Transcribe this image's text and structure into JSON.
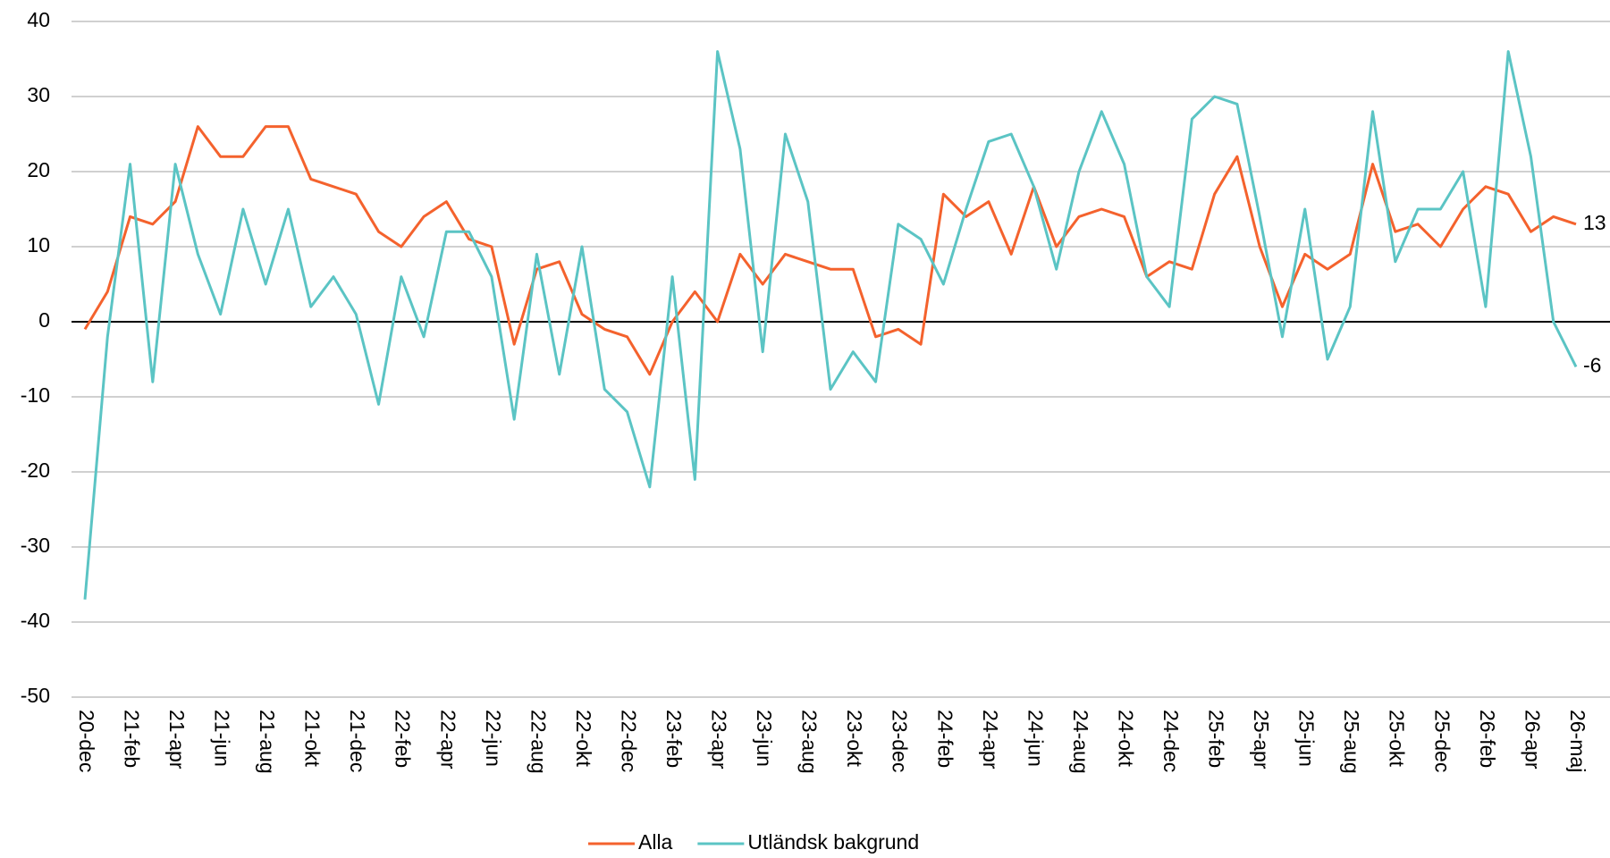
{
  "chart_data": {
    "type": "line",
    "categories": [
      "20-dec",
      null,
      "21-feb",
      null,
      "21-apr",
      null,
      "21-jun",
      null,
      "21-aug",
      null,
      "21-okt",
      null,
      "21-dec",
      null,
      "22-feb",
      null,
      "22-apr",
      null,
      "22-jun",
      null,
      "22-aug",
      null,
      "22-okt",
      null,
      "22-dec",
      null,
      "23-feb",
      null,
      "23-apr",
      null,
      "23-jun",
      null,
      "23-aug",
      null,
      "23-okt",
      null,
      "23-dec",
      null,
      "24-feb",
      null,
      "24-apr",
      null,
      "24-jun",
      null,
      "24-aug",
      null,
      "24-okt",
      null,
      "24-dec",
      null,
      "25-feb",
      null,
      "25-apr",
      null,
      "25-jun",
      null,
      "25-aug",
      null,
      "25-okt",
      null,
      "25-dec",
      null,
      "26-feb",
      null,
      "26-apr",
      null,
      "26-maj"
    ],
    "series": [
      {
        "name": "Alla",
        "color": "#f4622d",
        "values": [
          -1,
          4,
          14,
          13,
          16,
          26,
          22,
          22,
          26,
          26,
          19,
          18,
          17,
          12,
          10,
          14,
          16,
          11,
          10,
          -3,
          7,
          8,
          1,
          -1,
          -2,
          -7,
          0,
          4,
          0,
          9,
          5,
          9,
          8,
          7,
          7,
          -2,
          -1,
          -3,
          17,
          14,
          16,
          9,
          18,
          10,
          14,
          15,
          14,
          6,
          8,
          7,
          17,
          22,
          10,
          2,
          9,
          7,
          9,
          21,
          12,
          13,
          10,
          15,
          18,
          17,
          12,
          14,
          13
        ]
      },
      {
        "name": "Utländsk bakgrund",
        "color": "#5bc4c4",
        "values": [
          -37,
          -2,
          21,
          -8,
          21,
          9,
          1,
          15,
          5,
          15,
          2,
          6,
          1,
          -11,
          6,
          -2,
          12,
          12,
          6,
          -13,
          9,
          -7,
          10,
          -9,
          -12,
          -22,
          6,
          -21,
          36,
          23,
          -4,
          25,
          16,
          -9,
          -4,
          -8,
          13,
          11,
          5,
          15,
          24,
          25,
          18,
          7,
          20,
          28,
          21,
          6,
          2,
          27,
          30,
          29,
          14,
          -2,
          15,
          -5,
          2,
          28,
          8,
          15,
          15,
          20,
          2,
          36,
          22,
          0,
          -6
        ]
      }
    ],
    "ylim": [
      -50,
      40
    ],
    "yticks": [
      -50,
      -40,
      -30,
      -20,
      -10,
      0,
      10,
      20,
      30,
      40
    ],
    "grid": true,
    "end_labels": true,
    "legend": "bottom"
  }
}
